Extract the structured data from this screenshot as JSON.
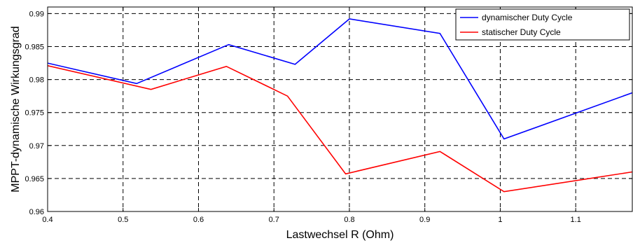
{
  "chart_data": {
    "type": "line",
    "title": "",
    "xlabel": "Lastwechsel R (Ohm)",
    "ylabel": "MPPT-dynamische Wirkungsgrad",
    "xlim": [
      0.4,
      1.175
    ],
    "ylim": [
      0.96,
      0.991
    ],
    "x_ticks": [
      "0.4",
      "0.5",
      "0.6",
      "0.7",
      "0.8",
      "0.9",
      "1",
      "1.1"
    ],
    "x_tick_values": [
      0.4,
      0.5,
      0.6,
      0.7,
      0.8,
      0.9,
      1.0,
      1.1
    ],
    "y_ticks": [
      "0.96",
      "0.965",
      "0.97",
      "0.975",
      "0.98",
      "0.985",
      "0.99"
    ],
    "y_tick_values": [
      0.96,
      0.965,
      0.97,
      0.975,
      0.98,
      0.985,
      0.99
    ],
    "grid": true,
    "legend_position": "top-right",
    "series": [
      {
        "name": "dynamischer Duty Cycle",
        "color": "#0000ff",
        "x": [
          0.4,
          0.518,
          0.64,
          0.728,
          0.8,
          0.92,
          1.005,
          1.175
        ],
        "y": [
          0.9825,
          0.9794,
          0.9853,
          0.9823,
          0.9892,
          0.987,
          0.971,
          0.978
        ]
      },
      {
        "name": "statischer Duty Cycle",
        "color": "#ff0000",
        "x": [
          0.4,
          0.537,
          0.637,
          0.718,
          0.795,
          0.92,
          1.005,
          1.175
        ],
        "y": [
          0.9821,
          0.9785,
          0.982,
          0.9775,
          0.9657,
          0.9691,
          0.963,
          0.966
        ]
      }
    ]
  }
}
